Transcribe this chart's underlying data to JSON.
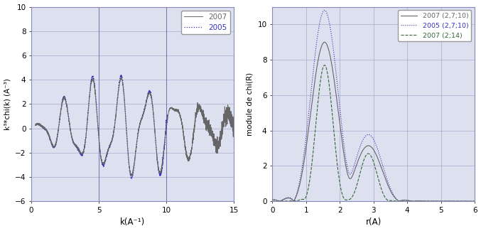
{
  "left_xlim": [
    0,
    15
  ],
  "left_ylim": [
    -6,
    10
  ],
  "left_xticks": [
    0,
    5,
    10,
    15
  ],
  "left_yticks": [
    -6,
    -4,
    -2,
    0,
    2,
    4,
    6,
    8,
    10
  ],
  "left_xlabel": "k(A⁻¹)",
  "left_ylabel": "k³*chi(k) (A⁻³)",
  "right_xlim": [
    0,
    6
  ],
  "right_ylim": [
    0,
    11
  ],
  "right_xticks": [
    0,
    1,
    2,
    3,
    4,
    5,
    6
  ],
  "right_yticks": [
    0,
    2,
    4,
    6,
    8,
    10
  ],
  "right_xlabel": "r(A)",
  "right_ylabel": "module de chi(R)",
  "color_2007": "#666666",
  "color_2005": "#3333bb",
  "color_2007_14": "#336633",
  "bg_color": "#dde0ef",
  "grid_color": "#aaaacc",
  "legend_left": [
    "2007",
    "2005"
  ],
  "legend_right": [
    "2007 (2,7;10)",
    "2005 (2,7;10)",
    "2007 (2;14)"
  ]
}
